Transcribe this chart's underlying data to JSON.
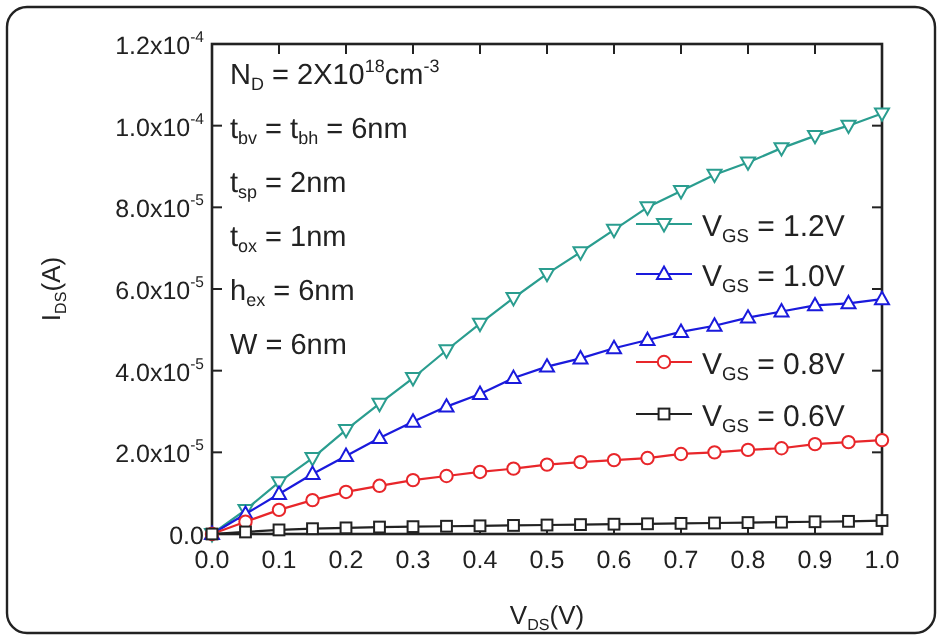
{
  "chart_data": {
    "type": "line",
    "xlabel": "V$_{DS}$(V)",
    "ylabel": "I$_{DS}$(A)",
    "x": [
      0,
      0.05,
      0.1,
      0.15,
      0.2,
      0.25,
      0.3,
      0.35,
      0.4,
      0.45,
      0.5,
      0.55,
      0.6,
      0.65,
      0.7,
      0.75,
      0.8,
      0.85,
      0.9,
      0.95,
      1.0
    ],
    "series": [
      {
        "name": "V$_{GS}$ = 1.2V",
        "color": "#2a9d8f",
        "marker": "triangle-down",
        "values": [
          0,
          5.9e-06,
          1.27e-05,
          1.86e-05,
          2.55e-05,
          3.19e-05,
          3.82e-05,
          4.5e-05,
          5.15e-05,
          5.78e-05,
          6.37e-05,
          6.9e-05,
          7.45e-05,
          8e-05,
          8.4e-05,
          8.8e-05,
          9.1e-05,
          9.45e-05,
          9.75e-05,
          0.0001,
          0.000103
        ]
      },
      {
        "name": "V$_{GS}$ = 1.0V",
        "color": "#1a1adc",
        "marker": "triangle",
        "values": [
          0,
          4.9e-06,
          9.8e-06,
          1.47e-05,
          1.91e-05,
          2.35e-05,
          2.75e-05,
          3.12e-05,
          3.43e-05,
          3.82e-05,
          4.1e-05,
          4.3e-05,
          4.55e-05,
          4.75e-05,
          4.95e-05,
          5.1e-05,
          5.3e-05,
          5.45e-05,
          5.6e-05,
          5.65e-05,
          5.75e-05
        ]
      },
      {
        "name": "V$_{GS}$ = 0.8V",
        "color": "#e8262a",
        "marker": "circle",
        "values": [
          0,
          3e-06,
          5.9e-06,
          8.3e-06,
          1.03e-05,
          1.18e-05,
          1.32e-05,
          1.42e-05,
          1.52e-05,
          1.6e-05,
          1.7e-05,
          1.76e-05,
          1.81e-05,
          1.86e-05,
          1.96e-05,
          2e-05,
          2.06e-05,
          2.1e-05,
          2.2e-05,
          2.25e-05,
          2.3e-05
        ]
      },
      {
        "name": "V$_{GS}$ = 0.6V",
        "color": "#222222",
        "marker": "square",
        "values": [
          0,
          5e-07,
          1e-06,
          1.3e-06,
          1.5e-06,
          1.7e-06,
          1.8e-06,
          1.9e-06,
          2e-06,
          2.1e-06,
          2.2e-06,
          2.3e-06,
          2.4e-06,
          2.5e-06,
          2.6e-06,
          2.7e-06,
          2.8e-06,
          2.9e-06,
          3e-06,
          3.1e-06,
          3.3e-06
        ]
      }
    ],
    "xlim": [
      0,
      1.0
    ],
    "xticks": [
      {
        "value": 0,
        "label": "0.0"
      },
      0.1,
      0.2,
      0.3,
      0.4,
      0.5,
      0.6,
      0.7,
      0.8,
      0.9,
      {
        "value": 1,
        "label": "1.0"
      }
    ],
    "ylim": [
      0,
      0.00012
    ],
    "yticks": [
      {
        "value": 0,
        "label": "0.0"
      },
      {
        "value": 2e-05,
        "label": "2.0x10$^{-5}$"
      },
      {
        "value": 4e-05,
        "label": "4.0x10$^{-5}$"
      },
      {
        "value": 6e-05,
        "label": "6.0x10$^{-5}$"
      },
      {
        "value": 8e-05,
        "label": "8.0x10$^{-5}$"
      },
      {
        "value": 0.0001,
        "label": "1.0x10$^{-4}$"
      },
      {
        "value": 0.00012,
        "label": "1.2x10$^{-4}$"
      }
    ],
    "legend": "right",
    "grid": false,
    "line_style": "solid",
    "annotations": [
      "N$_{D}$ = 2X10$^{18}$cm$^{-3}$",
      "t$_{bv}$ = t$_{bh}$ = 6nm",
      "t$_{sp}$ = 2nm",
      "t$_{ox}$ = 1nm",
      "h$_{ex}$ = 6nm",
      "W = 6nm"
    ]
  }
}
